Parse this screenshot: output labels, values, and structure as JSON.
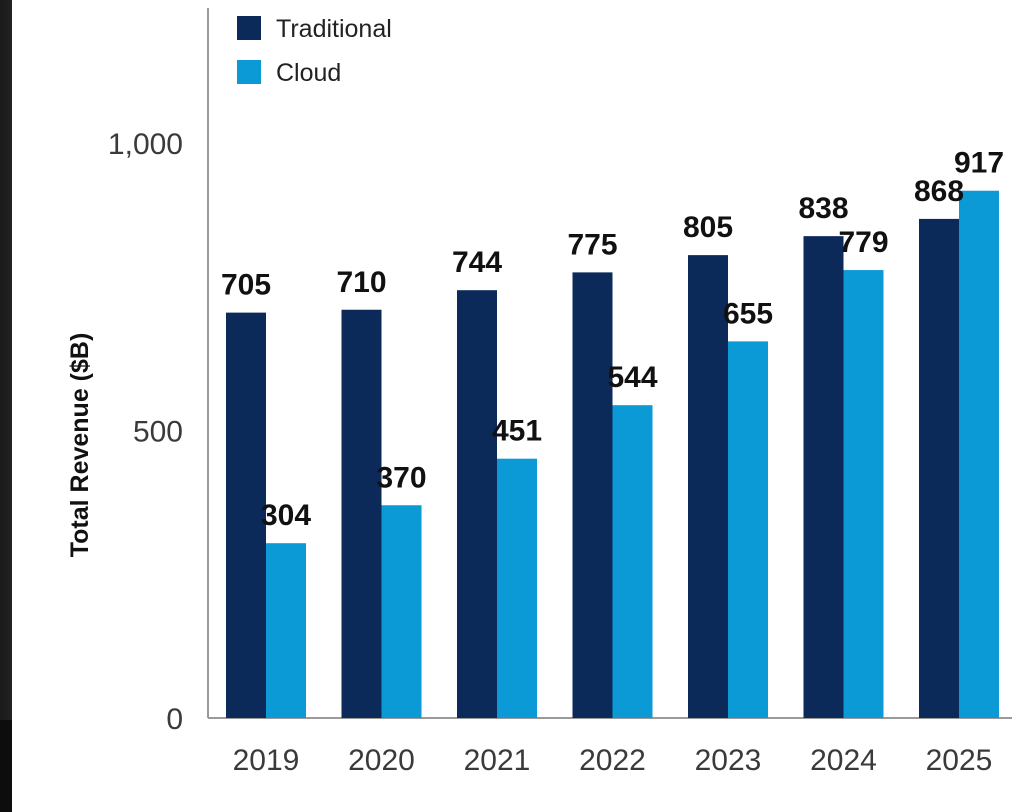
{
  "chart_data": {
    "type": "bar",
    "categories": [
      "2019",
      "2020",
      "2021",
      "2022",
      "2023",
      "2024",
      "2025"
    ],
    "series": [
      {
        "name": "Traditional",
        "color": "#0b2a5a",
        "values": [
          705,
          710,
          744,
          775,
          805,
          838,
          868
        ]
      },
      {
        "name": "Cloud",
        "color": "#0b9ad6",
        "values": [
          304,
          370,
          451,
          544,
          655,
          779,
          917
        ]
      }
    ],
    "ylabel": "Total Revenue ($B)",
    "xlabel": "",
    "ylim": [
      0,
      1200
    ],
    "yticks": [
      {
        "value": 0,
        "label": "0"
      },
      {
        "value": 500,
        "label": "500"
      },
      {
        "value": 1000,
        "label": "1,000"
      }
    ],
    "legend_position": "top-left",
    "grid": false
  }
}
